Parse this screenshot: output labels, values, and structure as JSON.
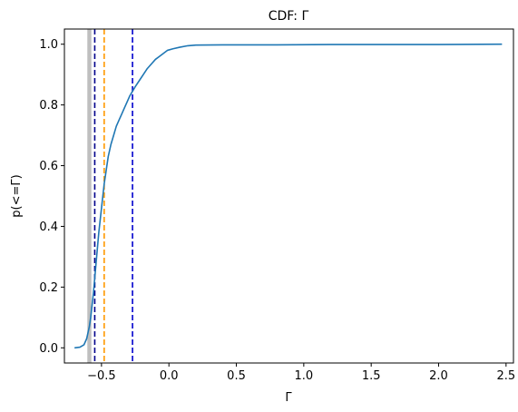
{
  "chart_data": {
    "type": "line",
    "title": "CDF: Γ",
    "xlabel": "Γ",
    "ylabel": "p(<=Γ)",
    "xlim": [
      -0.775,
      2.555
    ],
    "ylim": [
      -0.05,
      1.05
    ],
    "xticks": [
      -0.5,
      0.0,
      0.5,
      1.0,
      1.5,
      2.0,
      2.5
    ],
    "xtick_labels": [
      "−0.5",
      "0.0",
      "0.5",
      "1.0",
      "1.5",
      "2.0",
      "2.5"
    ],
    "yticks": [
      0.0,
      0.2,
      0.4,
      0.6,
      0.8,
      1.0
    ],
    "ytick_labels": [
      "0.0",
      "0.2",
      "0.4",
      "0.6",
      "0.8",
      "1.0"
    ],
    "grid": false,
    "series": [
      {
        "color": "#1f77b4",
        "x": [
          -0.7,
          -0.66,
          -0.63,
          -0.61,
          -0.6,
          -0.59,
          -0.58,
          -0.57,
          -0.56,
          -0.55,
          -0.54,
          -0.53,
          -0.52,
          -0.51,
          -0.5,
          -0.49,
          -0.48,
          -0.47,
          -0.46,
          -0.45,
          -0.43,
          -0.41,
          -0.39,
          -0.37,
          -0.35,
          -0.33,
          -0.31,
          -0.29,
          -0.27,
          -0.25,
          -0.22,
          -0.19,
          -0.16,
          -0.13,
          -0.1,
          -0.07,
          -0.04,
          -0.01,
          0.03,
          0.08,
          0.14,
          0.2,
          0.4,
          0.8,
          1.2,
          1.6,
          2.0,
          2.47
        ],
        "y": [
          0.0,
          0.002,
          0.01,
          0.03,
          0.05,
          0.07,
          0.1,
          0.14,
          0.18,
          0.23,
          0.28,
          0.33,
          0.38,
          0.42,
          0.46,
          0.5,
          0.54,
          0.57,
          0.6,
          0.63,
          0.67,
          0.7,
          0.73,
          0.75,
          0.77,
          0.79,
          0.81,
          0.83,
          0.845,
          0.86,
          0.88,
          0.9,
          0.92,
          0.935,
          0.95,
          0.96,
          0.97,
          0.98,
          0.985,
          0.99,
          0.995,
          0.997,
          0.998,
          0.998,
          0.999,
          0.999,
          0.999,
          1.0
        ]
      }
    ],
    "vertical_lines": [
      {
        "x": -0.55,
        "color": "#00008b",
        "style": "dashed"
      },
      {
        "x": -0.48,
        "color": "#ff9900",
        "style": "dashed"
      },
      {
        "x": -0.27,
        "color": "#0000cd",
        "style": "dashed"
      }
    ],
    "shaded_span": {
      "x0": -0.605,
      "x1": -0.575,
      "color": "#bfbfbf"
    }
  }
}
